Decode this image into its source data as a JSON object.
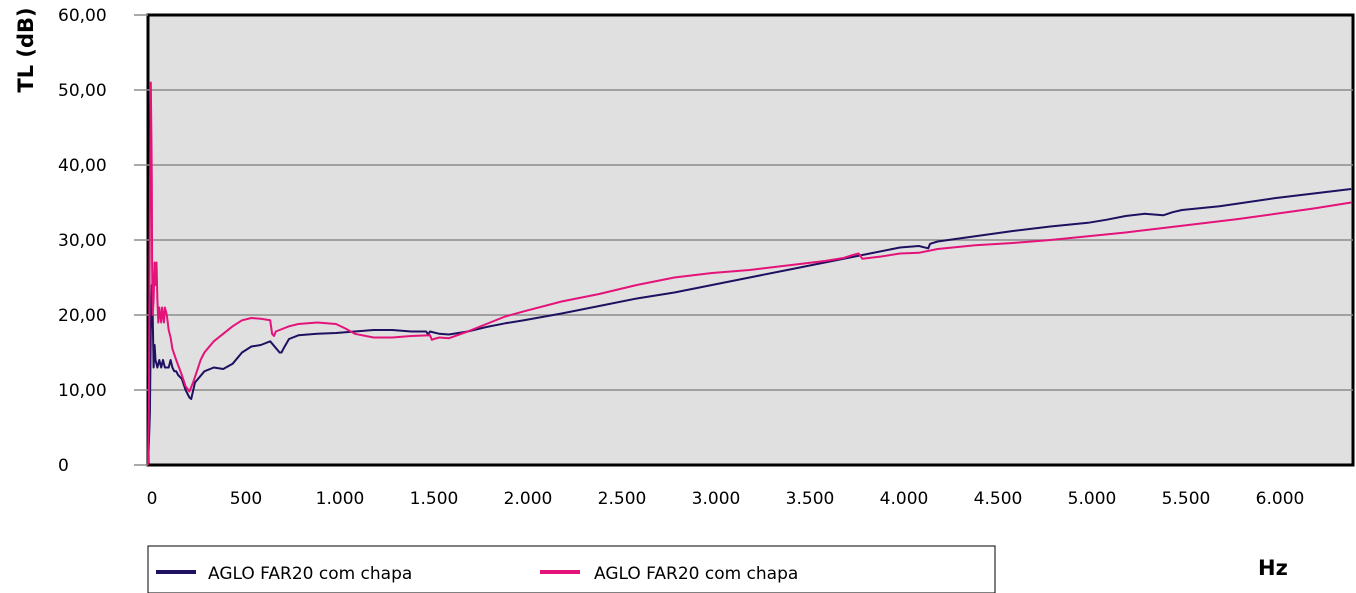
{
  "chart_data": {
    "type": "line",
    "title": "",
    "xlabel": "Hz",
    "ylabel": "TL (dB)",
    "xlim": [
      0,
      6400
    ],
    "ylim": [
      0,
      60
    ],
    "grid": "horizontal",
    "legend_position": "bottom",
    "x_tick_values": [
      0,
      500,
      1000,
      1500,
      2000,
      2500,
      3000,
      3500,
      4000,
      4500,
      5000,
      5500,
      6000
    ],
    "x_tick_labels": [
      "0",
      "500",
      "1.000",
      "1.500",
      "2.000",
      "2.500",
      "3.000",
      "3.500",
      "4.000",
      "4.500",
      "5.000",
      "5.500",
      "6.000"
    ],
    "y_tick_values": [
      0,
      10,
      20,
      30,
      40,
      50,
      60
    ],
    "y_tick_labels": [
      "0",
      "10,00",
      "20,00",
      "30,00",
      "40,00",
      "50,00",
      "60,00"
    ],
    "series": [
      {
        "name": "AGLO FAR20 com chapa",
        "color": "#1f1060",
        "x": [
          0,
          5,
          10,
          15,
          20,
          25,
          30,
          35,
          40,
          50,
          60,
          70,
          80,
          90,
          100,
          110,
          120,
          130,
          140,
          150,
          160,
          180,
          200,
          220,
          230,
          250,
          300,
          350,
          400,
          450,
          500,
          550,
          600,
          650,
          700,
          710,
          720,
          750,
          800,
          900,
          1000,
          1100,
          1200,
          1300,
          1400,
          1480,
          1490,
          1500,
          1550,
          1600,
          1700,
          1800,
          1900,
          2000,
          2200,
          2400,
          2600,
          2800,
          3000,
          3200,
          3400,
          3600,
          3700,
          3800,
          4000,
          4100,
          4150,
          4160,
          4200,
          4400,
          4600,
          4800,
          5000,
          5100,
          5200,
          5300,
          5400,
          5450,
          5500,
          5700,
          6000,
          6200,
          6400
        ],
        "y": [
          0,
          3,
          7,
          18,
          24,
          20,
          13,
          16,
          14,
          13,
          14,
          13,
          14,
          13,
          13,
          13,
          14,
          13,
          12.5,
          12.5,
          12,
          11.5,
          10,
          9,
          8.8,
          11,
          12.5,
          13,
          12.8,
          13.5,
          15,
          15.8,
          16,
          16.5,
          15,
          15,
          15.5,
          16.8,
          17.3,
          17.5,
          17.6,
          17.8,
          18,
          18,
          17.8,
          17.8,
          17.4,
          17.8,
          17.5,
          17.4,
          17.8,
          18.4,
          18.9,
          19.3,
          20.2,
          21.2,
          22.2,
          23,
          24,
          25,
          26,
          27,
          27.5,
          28,
          29,
          29.2,
          28.9,
          29.5,
          29.8,
          30.5,
          31.2,
          31.8,
          32.3,
          32.7,
          33.2,
          33.5,
          33.3,
          33.7,
          34,
          34.5,
          35.6,
          36.2,
          36.8
        ]
      },
      {
        "name": "AGLO FAR20 com chapa",
        "color": "#e3137a",
        "x": [
          0,
          5,
          10,
          15,
          18,
          20,
          22,
          25,
          30,
          35,
          40,
          45,
          50,
          55,
          60,
          65,
          70,
          75,
          80,
          85,
          90,
          100,
          110,
          120,
          130,
          150,
          180,
          200,
          220,
          240,
          260,
          280,
          300,
          350,
          400,
          450,
          500,
          550,
          600,
          650,
          660,
          670,
          680,
          700,
          750,
          800,
          900,
          1000,
          1050,
          1100,
          1200,
          1300,
          1400,
          1500,
          1510,
          1520,
          1550,
          1600,
          1700,
          1800,
          1900,
          2000,
          2200,
          2400,
          2600,
          2800,
          3000,
          3200,
          3400,
          3600,
          3700,
          3750,
          3780,
          3800,
          3900,
          4000,
          4100,
          4200,
          4400,
          4600,
          4800,
          5000,
          5200,
          5400,
          5600,
          5800,
          6000,
          6200,
          6400
        ],
        "y": [
          0,
          8,
          35,
          51,
          44,
          38,
          27,
          20,
          22,
          27,
          24,
          27,
          22,
          19,
          21,
          20,
          19,
          21,
          20,
          19,
          21,
          20,
          18,
          17,
          15.5,
          14,
          12,
          10.5,
          9.8,
          11,
          12.5,
          14,
          15,
          16.5,
          17.5,
          18.5,
          19.3,
          19.6,
          19.5,
          19.3,
          17.5,
          17.2,
          17.8,
          18,
          18.5,
          18.8,
          19,
          18.8,
          18.2,
          17.5,
          17,
          17,
          17.2,
          17.3,
          16.7,
          16.8,
          17,
          16.9,
          17.8,
          18.8,
          19.8,
          20.5,
          21.8,
          22.8,
          24,
          25,
          25.6,
          26,
          26.6,
          27.2,
          27.6,
          28,
          28.2,
          27.5,
          27.8,
          28.2,
          28.3,
          28.8,
          29.3,
          29.6,
          30,
          30.5,
          31,
          31.6,
          32.2,
          32.8,
          33.5,
          34.2,
          35
        ]
      }
    ]
  }
}
